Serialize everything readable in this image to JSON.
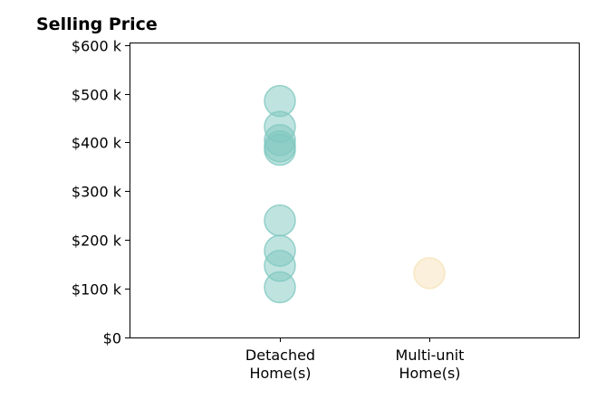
{
  "chart_data": {
    "type": "scatter",
    "title": "Selling Price",
    "xlabel": "",
    "ylabel": "",
    "categories": [
      "Detached Home(s)",
      "Multi-unit Home(s)"
    ],
    "category_lines": [
      [
        "Detached",
        "Home(s)"
      ],
      [
        "Multi-unit",
        "Home(s)"
      ]
    ],
    "ylim": [
      0,
      605000
    ],
    "yticks": [
      {
        "value": 0,
        "label": "$0"
      },
      {
        "value": 100000,
        "label": "$100 k"
      },
      {
        "value": 200000,
        "label": "$200 k"
      },
      {
        "value": 300000,
        "label": "$300 k"
      },
      {
        "value": 400000,
        "label": "$400 k"
      },
      {
        "value": 500000,
        "label": "$500 k"
      },
      {
        "value": 600000,
        "label": "$600 k"
      }
    ],
    "grid": false,
    "series": [
      {
        "category": "Detached Home(s)",
        "color": "#7fc8c0",
        "values": [
          485000,
          432000,
          405000,
          392000,
          385000,
          240000,
          178000,
          147000,
          103000
        ]
      },
      {
        "category": "Multi-unit Home(s)",
        "color": "#f6e2b8",
        "values": [
          132000
        ]
      }
    ]
  }
}
